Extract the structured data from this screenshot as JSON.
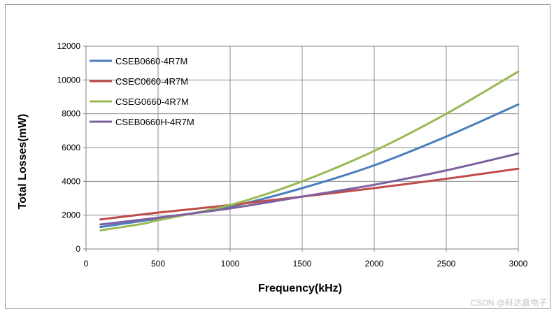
{
  "chart_data": {
    "type": "line",
    "xlabel": "Frequency(kHz)",
    "ylabel": "Total  Losses(mW)",
    "xlim": [
      0,
      3000
    ],
    "ylim": [
      0,
      12000
    ],
    "x_ticks": [
      0,
      500,
      1000,
      1500,
      2000,
      2500,
      3000
    ],
    "y_ticks": [
      0,
      2000,
      4000,
      6000,
      8000,
      10000,
      12000
    ],
    "grid": true,
    "legend_position": "top-left",
    "series": [
      {
        "name": "CSEB0660-4R7M",
        "color": "#4a7ebb",
        "x": [
          100,
          500,
          1000,
          1500,
          2000,
          2500,
          3000
        ],
        "y": [
          1300,
          1800,
          2500,
          3600,
          4950,
          6650,
          8550
        ]
      },
      {
        "name": "CSEC0660-4R7M",
        "color": "#be4b48",
        "x": [
          100,
          500,
          1000,
          1500,
          2000,
          2500,
          3000
        ],
        "y": [
          1750,
          2150,
          2600,
          3100,
          3600,
          4150,
          4750
        ]
      },
      {
        "name": "CSEG0660-4R7M",
        "color": "#98b954",
        "x": [
          100,
          400,
          500,
          1000,
          1500,
          2000,
          2500,
          3000
        ],
        "y": [
          1100,
          1500,
          1700,
          2600,
          4000,
          5800,
          8000,
          10500
        ]
      },
      {
        "name": "CSEB0660H-4R7M",
        "color": "#7d60a0",
        "x": [
          100,
          500,
          1000,
          1500,
          2000,
          2500,
          3000
        ],
        "y": [
          1450,
          1850,
          2400,
          3100,
          3800,
          4650,
          5650
        ]
      }
    ]
  },
  "watermark": "CSDN @科达嘉电子"
}
